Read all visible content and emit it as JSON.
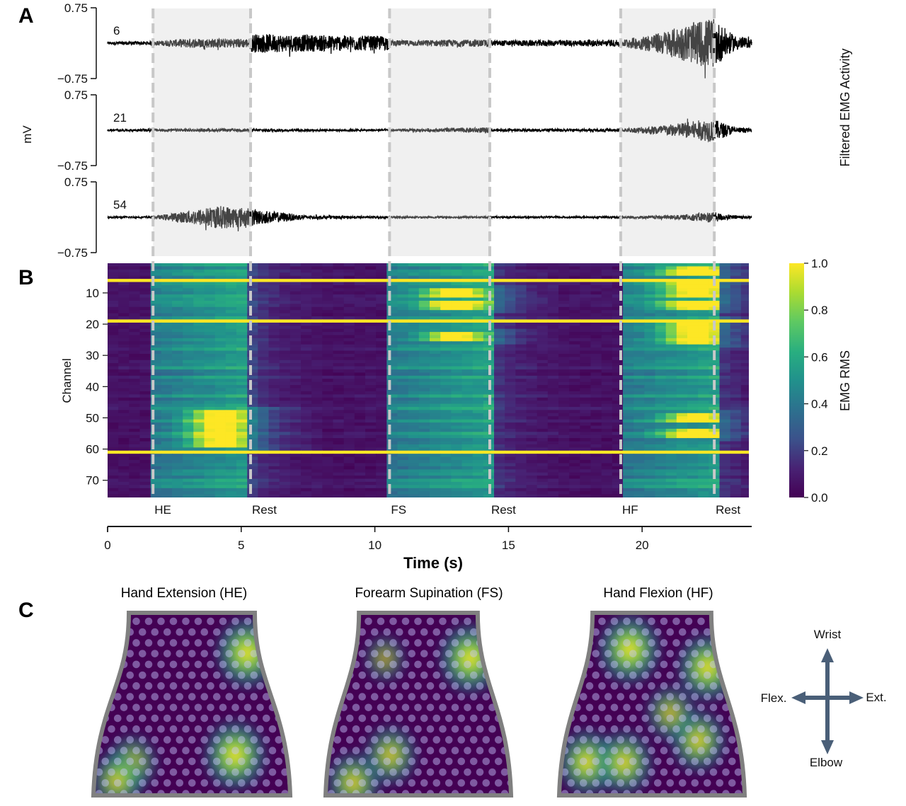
{
  "panels": {
    "A": {
      "letter": "A",
      "ylabel": "mV",
      "side_label": "Filtered EMG Activity",
      "ylim_text": [
        "0.75",
        "−0.75"
      ],
      "ylim": [
        -0.75,
        0.75
      ],
      "channels": [
        {
          "name": "6",
          "trace": [
            [
              0,
              0.03
            ],
            [
              1.7,
              0.04
            ],
            [
              3.0,
              0.1
            ],
            [
              5.3,
              0.1
            ],
            [
              5.4,
              0.2
            ],
            [
              10.5,
              0.15
            ],
            [
              10.6,
              0.06
            ],
            [
              14.3,
              0.08
            ],
            [
              14.4,
              0.06
            ],
            [
              19.2,
              0.07
            ],
            [
              20.5,
              0.2
            ],
            [
              22.3,
              0.5
            ],
            [
              22.6,
              0.55
            ],
            [
              23.4,
              0.18
            ],
            [
              24.1,
              0.08
            ]
          ]
        },
        {
          "name": "21",
          "trace": [
            [
              0,
              0.02
            ],
            [
              1.7,
              0.03
            ],
            [
              5.3,
              0.03
            ],
            [
              10.5,
              0.02
            ],
            [
              12.5,
              0.04
            ],
            [
              14.3,
              0.06
            ],
            [
              14.4,
              0.03
            ],
            [
              19.2,
              0.03
            ],
            [
              21.0,
              0.12
            ],
            [
              22.6,
              0.25
            ],
            [
              23.5,
              0.06
            ],
            [
              24.1,
              0.04
            ]
          ]
        },
        {
          "name": "54",
          "trace": [
            [
              0,
              0.02
            ],
            [
              1.7,
              0.02
            ],
            [
              2.8,
              0.12
            ],
            [
              4.2,
              0.25
            ],
            [
              5.3,
              0.2
            ],
            [
              5.7,
              0.15
            ],
            [
              7.5,
              0.04
            ],
            [
              10.5,
              0.02
            ],
            [
              14.3,
              0.02
            ],
            [
              19.2,
              0.02
            ],
            [
              21.5,
              0.05
            ],
            [
              22.6,
              0.12
            ],
            [
              23.2,
              0.05
            ],
            [
              24.1,
              0.03
            ]
          ]
        }
      ]
    },
    "B": {
      "letter": "B",
      "ylabel": "Channel",
      "yticks": [
        "10",
        "20",
        "30",
        "40",
        "50",
        "60",
        "70"
      ],
      "colorbar_label": "EMG RMS",
      "colorbar_ticks": [
        "1.0",
        "0.8",
        "0.6",
        "0.4",
        "0.2",
        "0.0"
      ],
      "events": [
        {
          "label": "HE",
          "t": 1.7
        },
        {
          "label": "Rest",
          "t": 5.35
        },
        {
          "label": "FS",
          "t": 10.55
        },
        {
          "label": "Rest",
          "t": 14.3
        },
        {
          "label": "HF",
          "t": 19.2
        },
        {
          "label": "Rest",
          "t": 22.7
        }
      ]
    },
    "time_axis": {
      "xlabel": "Time (s)",
      "ticks": [
        "0",
        "5",
        "10",
        "15",
        "20"
      ],
      "xlim": [
        0,
        24.1
      ]
    },
    "C": {
      "letter": "C",
      "maps": [
        {
          "title": "Hand Extension (HE)"
        },
        {
          "title": "Forearm Supination (FS)"
        },
        {
          "title": "Hand Flexion (HF)"
        }
      ],
      "compass": {
        "top": "Wrist",
        "bottom": "Elbow",
        "left": "Flex.",
        "right": "Ext."
      }
    }
  },
  "colors": {
    "trace_active": "#444444",
    "trace_rest": "#000000",
    "shade": "#f0f0f0",
    "event_line": "#c8c8c8",
    "viridis_low": "#440154",
    "viridis_mid": "#21918c",
    "viridis_high": "#fde725",
    "compass_arrow": "#4a5f78"
  },
  "chart_data": [
    {
      "type": "line",
      "title": "",
      "xlabel": "Time (s)",
      "ylabel": "mV",
      "xlim": [
        0,
        24.1
      ],
      "ylim": [
        -0.75,
        0.75
      ],
      "series": [
        {
          "name": "6",
          "envelope": [
            [
              0,
              0.03
            ],
            [
              1.7,
              0.04
            ],
            [
              3.0,
              0.1
            ],
            [
              5.3,
              0.1
            ],
            [
              5.4,
              0.2
            ],
            [
              10.5,
              0.15
            ],
            [
              10.6,
              0.06
            ],
            [
              14.3,
              0.08
            ],
            [
              14.4,
              0.06
            ],
            [
              19.2,
              0.07
            ],
            [
              20.5,
              0.2
            ],
            [
              22.3,
              0.5
            ],
            [
              22.6,
              0.55
            ],
            [
              23.4,
              0.18
            ],
            [
              24.1,
              0.08
            ]
          ]
        },
        {
          "name": "21",
          "envelope": [
            [
              0,
              0.02
            ],
            [
              1.7,
              0.03
            ],
            [
              5.3,
              0.03
            ],
            [
              10.5,
              0.02
            ],
            [
              12.5,
              0.04
            ],
            [
              14.3,
              0.06
            ],
            [
              14.4,
              0.03
            ],
            [
              19.2,
              0.03
            ],
            [
              21.0,
              0.12
            ],
            [
              22.6,
              0.25
            ],
            [
              23.5,
              0.06
            ],
            [
              24.1,
              0.04
            ]
          ]
        },
        {
          "name": "54",
          "envelope": [
            [
              0,
              0.02
            ],
            [
              1.7,
              0.02
            ],
            [
              2.8,
              0.12
            ],
            [
              4.2,
              0.25
            ],
            [
              5.3,
              0.2
            ],
            [
              5.7,
              0.15
            ],
            [
              7.5,
              0.04
            ],
            [
              10.5,
              0.02
            ],
            [
              14.3,
              0.02
            ],
            [
              19.2,
              0.02
            ],
            [
              21.5,
              0.05
            ],
            [
              22.6,
              0.12
            ],
            [
              23.2,
              0.05
            ],
            [
              24.1,
              0.03
            ]
          ]
        }
      ],
      "shaded_intervals": [
        [
          1.7,
          5.35
        ],
        [
          10.55,
          14.3
        ],
        [
          19.2,
          22.7
        ]
      ]
    },
    {
      "type": "heatmap",
      "xlabel": "Time (s)",
      "ylabel": "Channel",
      "xlim": [
        0,
        24.1
      ],
      "ylim": [
        1,
        75
      ],
      "colorbar": {
        "label": "EMG RMS",
        "range": [
          0,
          1
        ]
      },
      "saturated_channels": [
        6,
        19,
        61
      ],
      "activity_windows": [
        {
          "label": "HE",
          "t_range": [
            1.7,
            5.35
          ],
          "peak_channels": [
            49,
            52,
            54,
            56,
            58
          ],
          "peak_time": 4.2
        },
        {
          "label": "FS",
          "t_range": [
            10.55,
            14.3
          ],
          "peak_channels": [
            10,
            14,
            24
          ],
          "peak_time": 13.0
        },
        {
          "label": "HF",
          "t_range": [
            19.2,
            22.7
          ],
          "peak_channels": [
            3,
            8,
            10,
            14,
            20,
            22,
            25,
            50,
            55
          ],
          "peak_time": 22.0
        }
      ]
    },
    {
      "type": "heatmap",
      "subplots": [
        {
          "title": "Hand Extension (HE)",
          "hotspots": [
            [
              0.78,
              0.22,
              1.0
            ],
            [
              0.72,
              0.78,
              1.0
            ],
            [
              0.2,
              0.82,
              0.6
            ],
            [
              0.12,
              0.92,
              0.7
            ]
          ]
        },
        {
          "title": "Forearm Supination (FS)",
          "hotspots": [
            [
              0.78,
              0.25,
              1.0
            ],
            [
              0.32,
              0.25,
              0.35
            ],
            [
              0.35,
              0.78,
              0.7
            ],
            [
              0.15,
              0.93,
              0.75
            ]
          ]
        },
        {
          "title": "Hand Flexion (HF)",
          "hotspots": [
            [
              0.38,
              0.2,
              1.0
            ],
            [
              0.8,
              0.3,
              0.95
            ],
            [
              0.15,
              0.82,
              0.9
            ],
            [
              0.35,
              0.82,
              0.85
            ],
            [
              0.75,
              0.7,
              0.8
            ],
            [
              0.6,
              0.55,
              0.6
            ]
          ]
        }
      ]
    }
  ]
}
